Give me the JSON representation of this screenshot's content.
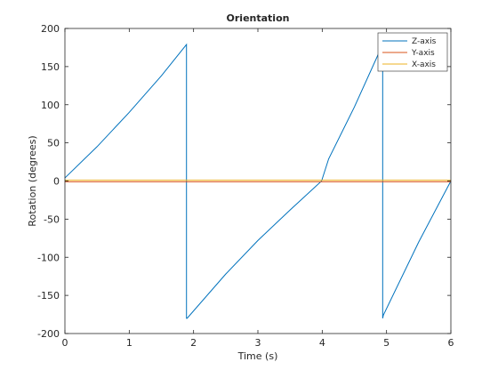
{
  "chart_data": {
    "type": "line",
    "title": "Orientation",
    "xlabel": "Time (s)",
    "ylabel": "Rotation (degrees)",
    "xlim": [
      0,
      6
    ],
    "ylim": [
      -200,
      200
    ],
    "xticks": [
      0,
      1,
      2,
      3,
      4,
      5,
      6
    ],
    "yticks": [
      -200,
      -150,
      -100,
      -50,
      0,
      50,
      100,
      150,
      200
    ],
    "grid": false,
    "legend_position": "top-right",
    "series": [
      {
        "name": "Z-axis",
        "color": "#0072BD",
        "x": [
          0,
          0.5,
          1.0,
          1.5,
          1.89,
          1.89,
          1.9,
          2.5,
          3.0,
          3.5,
          3.99,
          4.1,
          4.5,
          4.94,
          4.94,
          4.95,
          5.5,
          6.0
        ],
        "y": [
          4,
          45,
          90,
          138,
          179,
          -180,
          -180,
          -122,
          -78,
          -38,
          0,
          29,
          97,
          179,
          -180,
          -176,
          -80,
          0
        ]
      },
      {
        "name": "Y-axis",
        "color": "#D95319",
        "x": [
          0,
          6
        ],
        "y": [
          -1,
          -1
        ]
      },
      {
        "name": "X-axis",
        "color": "#EDB120",
        "x": [
          0,
          6
        ],
        "y": [
          1,
          1
        ]
      }
    ]
  }
}
